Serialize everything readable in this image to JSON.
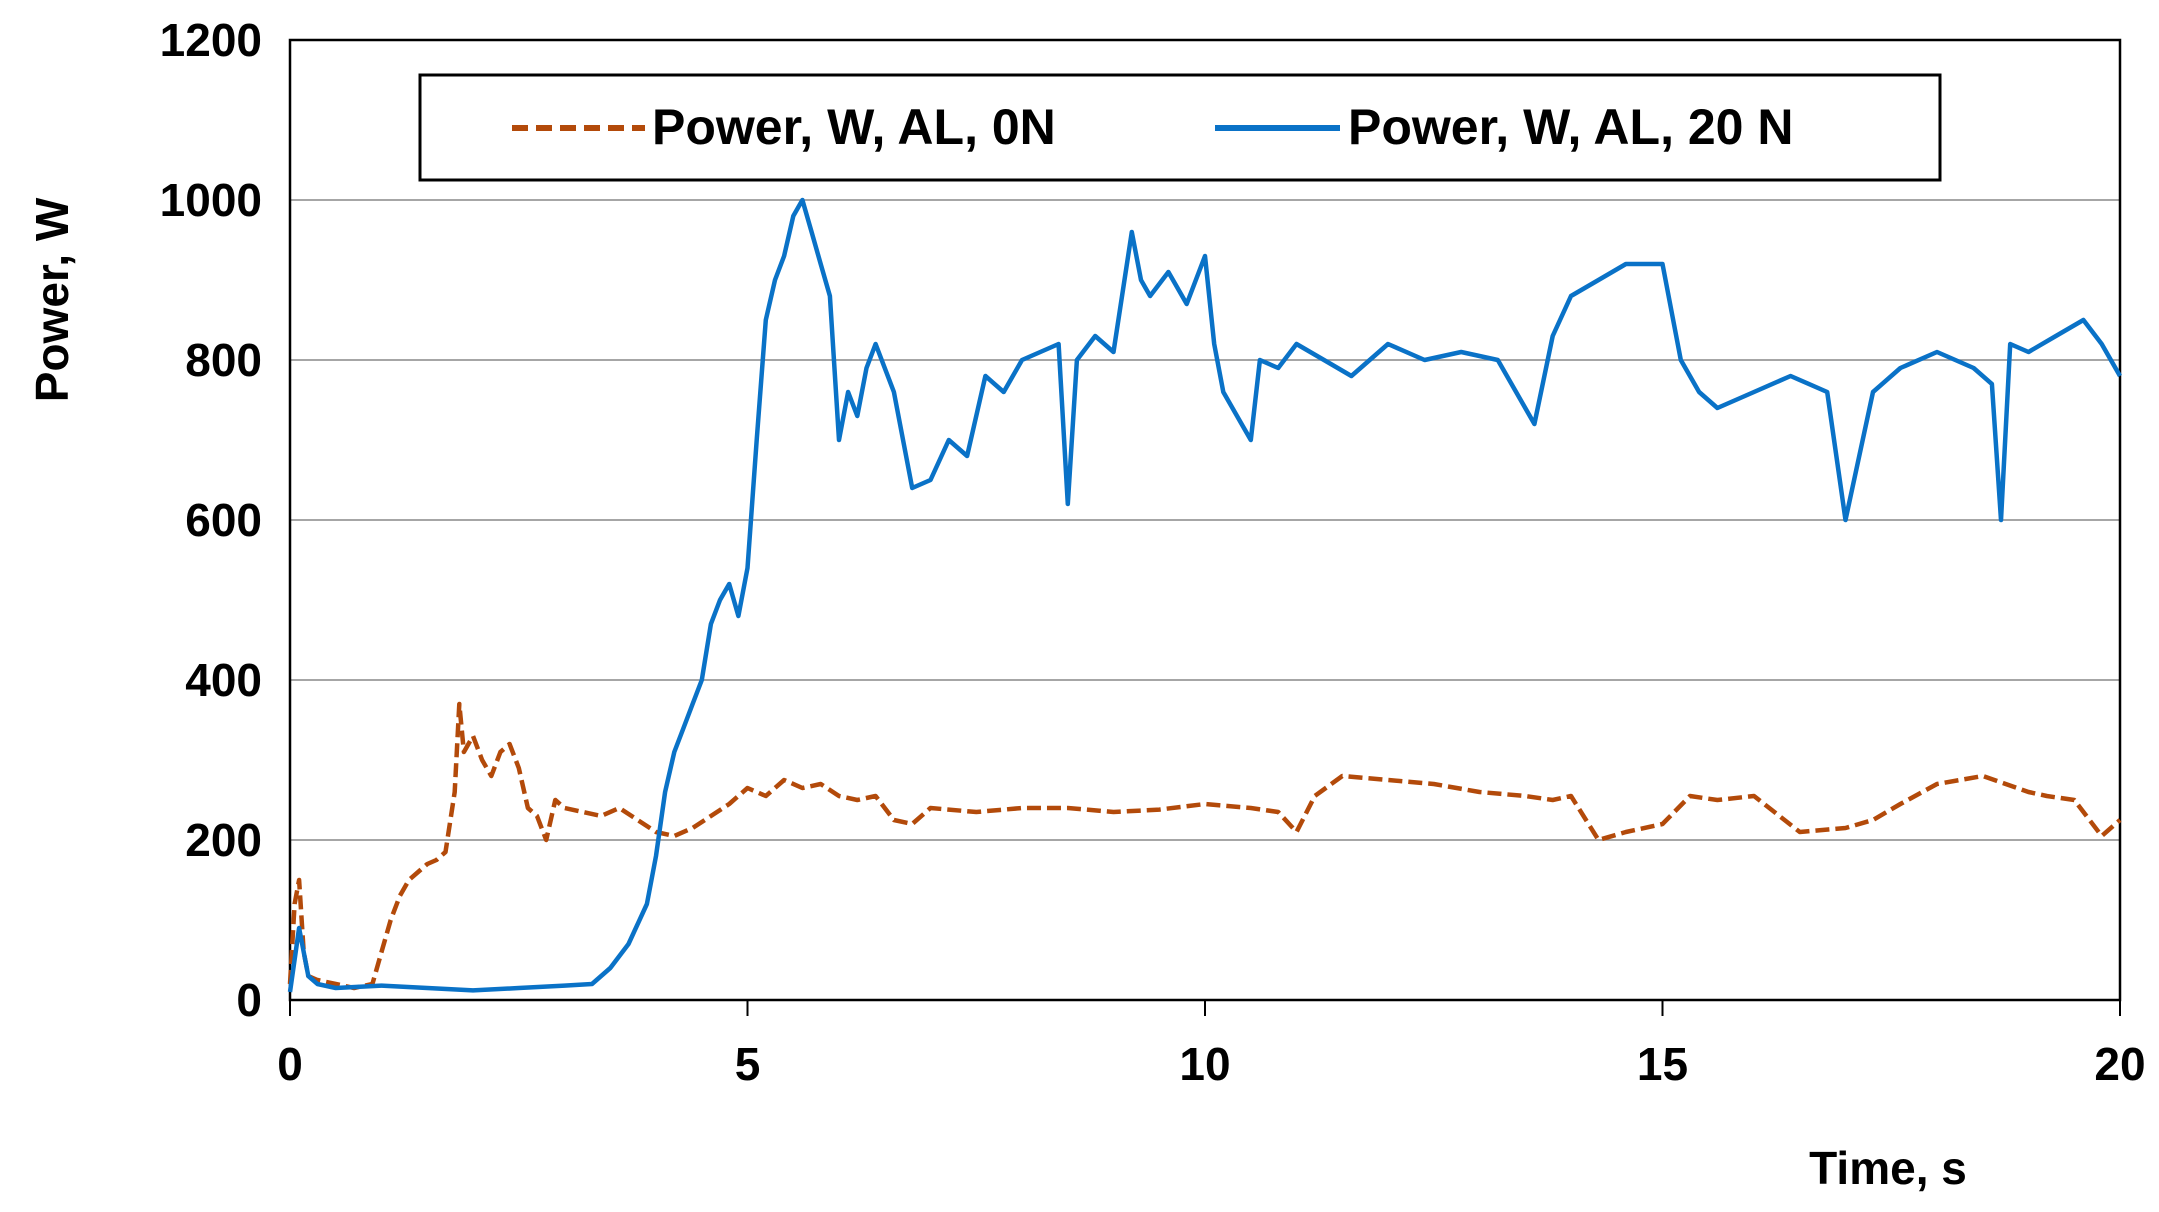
{
  "chart_data": {
    "type": "line",
    "xlabel": "Time, s",
    "ylabel": "Power, W",
    "xlim": [
      0,
      20
    ],
    "ylim": [
      0,
      1200
    ],
    "xticks": [
      0,
      5,
      10,
      15,
      20
    ],
    "yticks": [
      0,
      200,
      400,
      600,
      800,
      1000,
      1200
    ],
    "grid": "horizontal",
    "legend_position": "top-center",
    "series": [
      {
        "name": "Power, W, AL, 0N",
        "color": "#B34A0A",
        "style": "dashed",
        "x": [
          0,
          0.05,
          0.1,
          0.15,
          0.2,
          0.3,
          0.5,
          0.7,
          0.9,
          1.0,
          1.1,
          1.2,
          1.3,
          1.4,
          1.5,
          1.6,
          1.7,
          1.8,
          1.85,
          1.9,
          2.0,
          2.1,
          2.2,
          2.3,
          2.4,
          2.5,
          2.6,
          2.7,
          2.8,
          2.9,
          3.0,
          3.2,
          3.4,
          3.6,
          3.8,
          4.0,
          4.2,
          4.4,
          4.6,
          4.8,
          5.0,
          5.2,
          5.4,
          5.6,
          5.8,
          6.0,
          6.2,
          6.4,
          6.6,
          6.8,
          7.0,
          7.5,
          8.0,
          8.5,
          9.0,
          9.5,
          10.0,
          10.5,
          10.8,
          11.0,
          11.2,
          11.5,
          12.0,
          12.5,
          13.0,
          13.5,
          13.8,
          14.0,
          14.3,
          14.6,
          15.0,
          15.3,
          15.6,
          16.0,
          16.5,
          17.0,
          17.3,
          17.6,
          18.0,
          18.5,
          19.0,
          19.2,
          19.5,
          19.8,
          20.0
        ],
        "values": [
          20,
          120,
          150,
          60,
          30,
          25,
          20,
          15,
          20,
          60,
          100,
          130,
          150,
          160,
          170,
          175,
          185,
          260,
          370,
          310,
          330,
          300,
          280,
          310,
          320,
          290,
          240,
          230,
          200,
          250,
          240,
          235,
          230,
          240,
          225,
          210,
          205,
          215,
          230,
          245,
          265,
          255,
          275,
          265,
          270,
          255,
          250,
          255,
          225,
          220,
          240,
          235,
          240,
          240,
          235,
          238,
          245,
          240,
          235,
          210,
          255,
          280,
          275,
          270,
          260,
          255,
          250,
          255,
          200,
          210,
          220,
          255,
          250,
          255,
          210,
          215,
          225,
          245,
          270,
          280,
          260,
          255,
          250,
          205,
          225
        ]
      },
      {
        "name": "Power, W, AL, 20 N",
        "color": "#0A72C7",
        "style": "solid",
        "x": [
          0,
          0.1,
          0.15,
          0.2,
          0.25,
          0.3,
          0.5,
          1.0,
          1.5,
          2.0,
          2.5,
          3.0,
          3.3,
          3.5,
          3.7,
          3.9,
          4.0,
          4.1,
          4.2,
          4.3,
          4.4,
          4.5,
          4.6,
          4.7,
          4.8,
          4.9,
          5.0,
          5.1,
          5.2,
          5.3,
          5.4,
          5.5,
          5.6,
          5.7,
          5.8,
          5.9,
          6.0,
          6.1,
          6.2,
          6.3,
          6.4,
          6.6,
          6.8,
          7.0,
          7.2,
          7.4,
          7.6,
          7.8,
          8.0,
          8.2,
          8.4,
          8.5,
          8.6,
          8.8,
          9.0,
          9.2,
          9.3,
          9.4,
          9.6,
          9.8,
          10.0,
          10.1,
          10.2,
          10.4,
          10.5,
          10.6,
          10.8,
          11.0,
          11.3,
          11.6,
          12.0,
          12.4,
          12.8,
          13.2,
          13.6,
          13.8,
          14.0,
          14.3,
          14.6,
          15.0,
          15.2,
          15.4,
          15.6,
          16.0,
          16.4,
          16.8,
          17.0,
          17.3,
          17.6,
          18.0,
          18.4,
          18.6,
          18.7,
          18.8,
          19.0,
          19.3,
          19.6,
          19.8,
          20.0
        ],
        "values": [
          10,
          90,
          60,
          30,
          25,
          20,
          15,
          18,
          15,
          12,
          15,
          18,
          20,
          40,
          70,
          120,
          180,
          260,
          310,
          340,
          370,
          400,
          470,
          500,
          520,
          480,
          540,
          700,
          850,
          900,
          930,
          980,
          1000,
          960,
          920,
          880,
          700,
          760,
          730,
          790,
          820,
          760,
          640,
          650,
          700,
          680,
          780,
          760,
          800,
          810,
          820,
          620,
          800,
          830,
          810,
          960,
          900,
          880,
          910,
          870,
          930,
          820,
          760,
          720,
          700,
          800,
          790,
          820,
          800,
          780,
          820,
          800,
          810,
          800,
          720,
          830,
          880,
          900,
          920,
          920,
          800,
          760,
          740,
          760,
          780,
          760,
          600,
          760,
          790,
          810,
          790,
          770,
          600,
          820,
          810,
          830,
          850,
          820,
          780
        ]
      }
    ]
  }
}
